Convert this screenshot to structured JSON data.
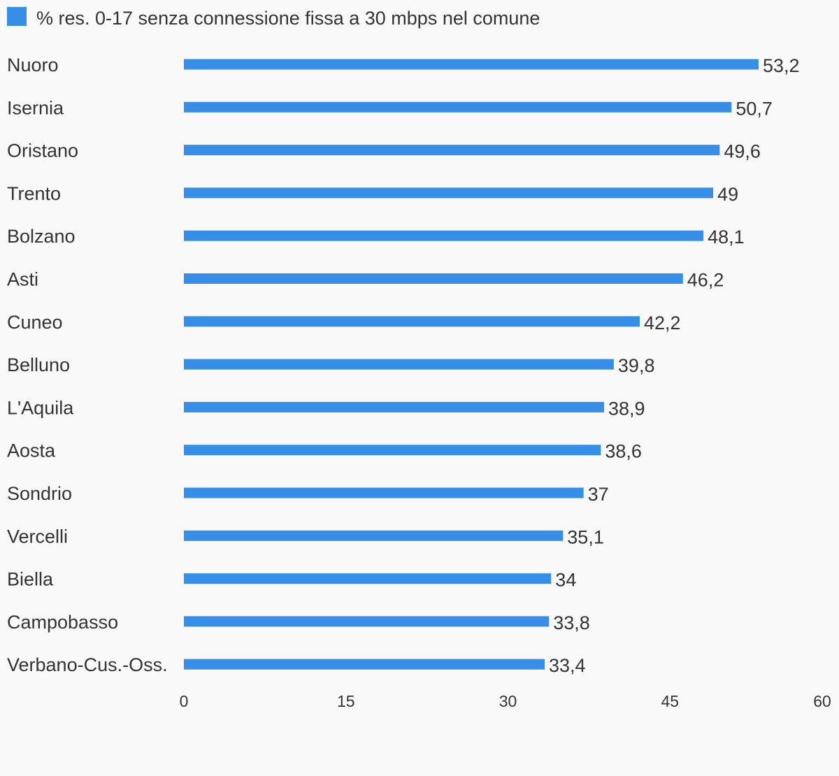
{
  "chart_data": {
    "type": "bar",
    "orientation": "horizontal",
    "legend": {
      "position": "top-left",
      "items": [
        {
          "label": "% res. 0-17 senza connessione fissa a 30 mbps nel comune",
          "color": "#368ee9"
        }
      ]
    },
    "categories": [
      "Nuoro",
      "Isernia",
      "Oristano",
      "Trento",
      "Bolzano",
      "Asti",
      "Cuneo",
      "Belluno",
      "L'Aquila",
      "Aosta",
      "Sondrio",
      "Vercelli",
      "Biella",
      "Campobasso",
      "Verbano-Cus.-Oss."
    ],
    "series": [
      {
        "name": "% res. 0-17 senza connessione fissa a 30 mbps nel comune",
        "color": "#368ee9",
        "values": [
          53.2,
          50.7,
          49.6,
          49,
          48.1,
          46.2,
          42.2,
          39.8,
          38.9,
          38.6,
          37,
          35.1,
          34,
          33.8,
          33.4
        ]
      }
    ],
    "value_labels": [
      "53,2",
      "50,7",
      "49,6",
      "49",
      "48,1",
      "46,2",
      "42,2",
      "39,8",
      "38,9",
      "38,6",
      "37",
      "35,1",
      "34",
      "33,8",
      "33,4"
    ],
    "xlim": [
      0,
      60
    ],
    "xticks": [
      0,
      15,
      30,
      45,
      60
    ],
    "xtick_labels": [
      "0",
      "15",
      "30",
      "45",
      "60"
    ],
    "grid": false,
    "colors": {
      "background": "#f9f9f9",
      "text": "#333333",
      "bar": "#368ee9"
    }
  }
}
